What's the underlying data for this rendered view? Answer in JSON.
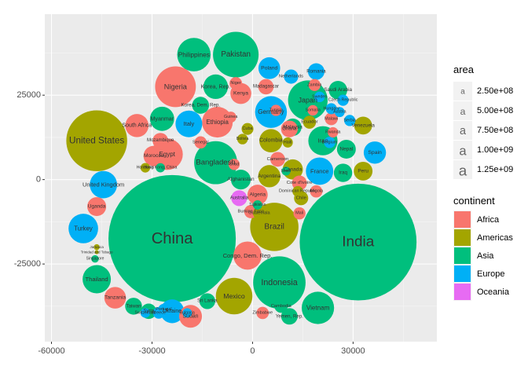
{
  "chart_data": {
    "type": "scatter",
    "title": "",
    "xlabel": "",
    "ylabel": "",
    "xlim": [
      -62000,
      55000
    ],
    "ylim": [
      -48000,
      49000
    ],
    "xticks": [
      -60000,
      -30000,
      0,
      30000
    ],
    "xtick_labels": [
      "-60000",
      "-30000",
      "0",
      "30000"
    ],
    "yticks": [
      -25000,
      0,
      25000
    ],
    "ytick_labels": [
      "-25000",
      "0",
      "25000"
    ],
    "grid": true,
    "legend_position": "right",
    "continent_legend": {
      "title": "continent",
      "entries": [
        {
          "name": "Africa",
          "color": "#F8766D"
        },
        {
          "name": "Americas",
          "color": "#A3A500"
        },
        {
          "name": "Asia",
          "color": "#00BF7D"
        },
        {
          "name": "Europe",
          "color": "#00B0F6"
        },
        {
          "name": "Oceania",
          "color": "#E76BF3"
        }
      ]
    },
    "area_legend": {
      "title": "area",
      "entries": [
        {
          "label": "2.50e+08",
          "value": 250000000
        },
        {
          "label": "5.00e+08",
          "value": 500000000
        },
        {
          "label": "7.50e+08",
          "value": 750000000
        },
        {
          "label": "1.00e+09",
          "value": 1000000000
        },
        {
          "label": "1.25e+09",
          "value": 1250000000
        }
      ]
    },
    "points": [
      {
        "label": "China",
        "continent": "Asia",
        "x": -24000,
        "y": -17500,
        "area": 1318683096
      },
      {
        "label": "India",
        "continent": "Asia",
        "x": 31500,
        "y": -18500,
        "area": 1110396331
      },
      {
        "label": "United States",
        "continent": "Americas",
        "x": -46500,
        "y": 11500,
        "area": 301139947
      },
      {
        "label": "Indonesia",
        "continent": "Asia",
        "x": 8000,
        "y": -30500,
        "area": 223547000
      },
      {
        "label": "Brazil",
        "continent": "Americas",
        "x": 6500,
        "y": -14000,
        "area": 190010647
      },
      {
        "label": "Pakistan",
        "continent": "Asia",
        "x": -5000,
        "y": 37000,
        "area": 169270617
      },
      {
        "label": "Bangladesh",
        "continent": "Asia",
        "x": -11000,
        "y": 5000,
        "area": 150448339
      },
      {
        "label": "Nigeria",
        "continent": "Africa",
        "x": -23000,
        "y": 27500,
        "area": 135031164
      },
      {
        "label": "Japan",
        "continent": "Asia",
        "x": 16500,
        "y": 23500,
        "area": 127467972
      },
      {
        "label": "Mexico",
        "continent": "Americas",
        "x": -5500,
        "y": -34500,
        "area": 108700891
      },
      {
        "label": "Philippines",
        "continent": "Asia",
        "x": -17500,
        "y": 37000,
        "area": 91077287
      },
      {
        "label": "Vietnam",
        "continent": "Asia",
        "x": 19500,
        "y": -38000,
        "area": 85262356
      },
      {
        "label": "Germany",
        "continent": "Europe",
        "x": 5500,
        "y": 20000,
        "area": 82400996
      },
      {
        "label": "Egypt",
        "continent": "Africa",
        "x": -25500,
        "y": 7500,
        "area": 80264543
      },
      {
        "label": "Ethiopia",
        "continent": "Africa",
        "x": -10500,
        "y": 17000,
        "area": 76511887
      },
      {
        "label": "Turkey",
        "continent": "Europe",
        "x": -50500,
        "y": -14500,
        "area": 71158647
      },
      {
        "label": "Iran",
        "continent": "Asia",
        "x": 21000,
        "y": 11500,
        "area": 69453570
      },
      {
        "label": "Thailand",
        "continent": "Asia",
        "x": -46500,
        "y": -29500,
        "area": 65068149
      },
      {
        "label": "Congo, Dem. Rep.",
        "continent": "Africa",
        "x": -1500,
        "y": -22500,
        "area": 64606759
      },
      {
        "label": "France",
        "continent": "Europe",
        "x": 20000,
        "y": 2500,
        "area": 61083916
      },
      {
        "label": "United Kingdom",
        "continent": "Europe",
        "x": -44500,
        "y": -1500,
        "area": 60776238
      },
      {
        "label": "Italy",
        "continent": "Europe",
        "x": -19000,
        "y": 16500,
        "area": 58147733
      },
      {
        "label": "South Africa",
        "continent": "Africa",
        "x": -34500,
        "y": 16000,
        "area": 43997828
      },
      {
        "label": "Korea, Rep.",
        "continent": "Asia",
        "x": -11000,
        "y": 27500,
        "area": 49044790
      },
      {
        "label": "Myanmar",
        "continent": "Asia",
        "x": -27000,
        "y": 18000,
        "area": 47761980
      },
      {
        "label": "Colombia",
        "continent": "Americas",
        "x": 5500,
        "y": 11500,
        "area": 44227550
      },
      {
        "label": "Spain",
        "continent": "Europe",
        "x": 36500,
        "y": 8000,
        "area": 40448191
      },
      {
        "label": "Ukraine",
        "continent": "Europe",
        "x": -24000,
        "y": -39000,
        "area": 46000000
      },
      {
        "label": "Tanzania",
        "continent": "Africa",
        "x": -41000,
        "y": -35000,
        "area": 38139640
      },
      {
        "label": "Sudan",
        "continent": "Africa",
        "x": -18500,
        "y": -40500,
        "area": 42292929
      },
      {
        "label": "Kenya",
        "continent": "Africa",
        "x": -3500,
        "y": 25500,
        "area": 35610177
      },
      {
        "label": "Argentina",
        "continent": "Americas",
        "x": 5000,
        "y": 1000,
        "area": 40301927
      },
      {
        "label": "Poland",
        "continent": "Europe",
        "x": 5000,
        "y": 33000,
        "area": 38518241
      },
      {
        "label": "Canada",
        "continent": "Americas",
        "x": 12000,
        "y": 3000,
        "area": 33390141
      },
      {
        "label": "Uganda",
        "continent": "Africa",
        "x": -46500,
        "y": -8000,
        "area": 29170398
      },
      {
        "label": "Morocco",
        "continent": "Africa",
        "x": -29500,
        "y": 7000,
        "area": 33757175
      },
      {
        "label": "Iraq",
        "continent": "Asia",
        "x": 27000,
        "y": 2000,
        "area": 27499638
      },
      {
        "label": "Peru",
        "continent": "Americas",
        "x": 33000,
        "y": 2500,
        "area": 28674757
      },
      {
        "label": "Venezuela",
        "continent": "Americas",
        "x": 33000,
        "y": 16000,
        "area": 26084662
      },
      {
        "label": "Nepal",
        "continent": "Asia",
        "x": 28000,
        "y": 9000,
        "area": 28901790
      },
      {
        "label": "Malaysia",
        "continent": "Asia",
        "x": 12000,
        "y": 15500,
        "area": 24821286
      },
      {
        "label": "Saudi Arabia",
        "continent": "Asia",
        "x": 25500,
        "y": 26500,
        "area": 27601038
      },
      {
        "label": "Romania",
        "continent": "Europe",
        "x": 19000,
        "y": 32000,
        "area": 22276056
      },
      {
        "label": "Afghanistan",
        "continent": "Asia",
        "x": -3500,
        "y": 0,
        "area": 31889923
      },
      {
        "label": "Ghana",
        "continent": "Africa",
        "x": 11000,
        "y": 15000,
        "area": 22873338
      },
      {
        "label": "Korea, Dem. Rep.",
        "continent": "Asia",
        "x": -15500,
        "y": 22000,
        "area": 23301725
      },
      {
        "label": "Australia",
        "continent": "Oceania",
        "x": -4000,
        "y": -5500,
        "area": 20434176
      },
      {
        "label": "Sri Lanka",
        "continent": "Asia",
        "x": -13500,
        "y": -36000,
        "area": 20378239
      },
      {
        "label": "Taiwan",
        "continent": "Asia",
        "x": -35500,
        "y": -37500,
        "area": 23174294
      },
      {
        "label": "Mozambique",
        "continent": "Africa",
        "x": -27500,
        "y": 11500,
        "area": 19951656
      },
      {
        "label": "Algeria",
        "continent": "Africa",
        "x": 1500,
        "y": -4500,
        "area": 33333216
      },
      {
        "label": "Yemen, Rep.",
        "continent": "Asia",
        "x": 11000,
        "y": -40500,
        "area": 22211743
      },
      {
        "label": "Syria",
        "continent": "Asia",
        "x": -31000,
        "y": -39000,
        "area": 19314747
      },
      {
        "label": "Zimbabwe",
        "continent": "Africa",
        "x": 3000,
        "y": -39500,
        "area": 12311143
      },
      {
        "label": "Cameroon",
        "continent": "Africa",
        "x": 7500,
        "y": 6000,
        "area": 17696293
      },
      {
        "label": "Chile",
        "continent": "Americas",
        "x": 14500,
        "y": -5500,
        "area": 16284741
      },
      {
        "label": "Netherlands",
        "continent": "Europe",
        "x": 11500,
        "y": 30500,
        "area": 16570613
      },
      {
        "label": "Burkina Faso",
        "continent": "Africa",
        "x": -500,
        "y": -9500,
        "area": 14326203
      },
      {
        "label": "Cote d'Ivoire",
        "continent": "Africa",
        "x": 14000,
        "y": -1000,
        "area": 18013409
      },
      {
        "label": "Madagascar",
        "continent": "Africa",
        "x": 4000,
        "y": 27500,
        "area": 19167654
      },
      {
        "label": "Angola",
        "continent": "Africa",
        "x": 19000,
        "y": -3500,
        "area": 12420476
      },
      {
        "label": "Guatemala",
        "continent": "Americas",
        "x": 2000,
        "y": -10000,
        "area": 12572928
      },
      {
        "label": "Ecuador",
        "continent": "Americas",
        "x": 17000,
        "y": 17000,
        "area": 13755680
      },
      {
        "label": "Cambodia",
        "continent": "Asia",
        "x": 8500,
        "y": -37500,
        "area": 14131858
      },
      {
        "label": "Mali",
        "continent": "Africa",
        "x": 14000,
        "y": -10000,
        "area": 12031795
      },
      {
        "label": "Malawi",
        "continent": "Africa",
        "x": 23500,
        "y": 18000,
        "area": 13327079
      },
      {
        "label": "Niger",
        "continent": "Africa",
        "x": -5000,
        "y": 28500,
        "area": 12894865
      },
      {
        "label": "Belgium",
        "continent": "Europe",
        "x": 23000,
        "y": 11000,
        "area": 10392226
      },
      {
        "label": "Cuba",
        "continent": "Americas",
        "x": -1500,
        "y": 15000,
        "area": 11416987
      },
      {
        "label": "Greece",
        "continent": "Europe",
        "x": -28000,
        "y": -39500,
        "area": 10706290
      },
      {
        "label": "Portugal",
        "continent": "Europe",
        "x": -26500,
        "y": -38500,
        "area": 10642836
      },
      {
        "label": "Czech Republic",
        "continent": "Europe",
        "x": 27000,
        "y": 23500,
        "area": 10228744
      },
      {
        "label": "Tunisia",
        "continent": "Africa",
        "x": 7000,
        "y": 20500,
        "area": 10276158
      },
      {
        "label": "Zambia",
        "continent": "Africa",
        "x": 18500,
        "y": 28000,
        "area": 11746035
      },
      {
        "label": "Senegal",
        "continent": "Africa",
        "x": -15500,
        "y": 11000,
        "area": 12267493
      },
      {
        "label": "Bolivia",
        "continent": "Americas",
        "x": -3000,
        "y": 12000,
        "area": 9119152
      },
      {
        "label": "Haiti",
        "continent": "Americas",
        "x": 10500,
        "y": 11000,
        "area": 8502814
      },
      {
        "label": "Hungary",
        "continent": "Europe",
        "x": 23500,
        "y": 21000,
        "area": 9956108
      },
      {
        "label": "Dominican Republic",
        "continent": "Americas",
        "x": 13500,
        "y": -3500,
        "area": 9319622
      },
      {
        "label": "Rwanda",
        "continent": "Africa",
        "x": 24000,
        "y": 14000,
        "area": 8860588
      },
      {
        "label": "Somalia",
        "continent": "Africa",
        "x": 18000,
        "y": 20500,
        "area": 9118773
      },
      {
        "label": "Chad",
        "continent": "Africa",
        "x": -5500,
        "y": 4500,
        "area": 10238807
      },
      {
        "label": "Guinea",
        "continent": "Africa",
        "x": -6500,
        "y": 18500,
        "area": 9947814
      },
      {
        "label": "Sweden",
        "continent": "Europe",
        "x": 20000,
        "y": 24500,
        "area": 9031088
      },
      {
        "label": "Tajikistan",
        "continent": "Asia",
        "x": 1500,
        "y": -7500,
        "area": 7082810
      },
      {
        "label": "Austria",
        "continent": "Europe",
        "x": 26000,
        "y": 20000,
        "area": 8199783
      },
      {
        "label": "Switzerland",
        "continent": "Europe",
        "x": -32000,
        "y": -39500,
        "area": 7554661
      },
      {
        "label": "Honduras",
        "continent": "Americas",
        "x": -32000,
        "y": 3500,
        "area": 7483763
      },
      {
        "label": "Israel",
        "continent": "Asia",
        "x": 10000,
        "y": 2500,
        "area": 6426679
      },
      {
        "label": "Serbia",
        "continent": "Europe",
        "x": 29000,
        "y": 17500,
        "area": 10150265
      },
      {
        "label": "Bulgaria",
        "continent": "Europe",
        "x": -19500,
        "y": -39500,
        "area": 7322858
      },
      {
        "label": "Hong Kong, China",
        "continent": "Asia",
        "x": -27500,
        "y": 3500,
        "area": 6980412
      },
      {
        "label": "Trinidad and Tobago",
        "continent": "Americas",
        "x": -46500,
        "y": -21500,
        "area": 1056608
      },
      {
        "label": "Jamaica",
        "continent": "Americas",
        "x": -46500,
        "y": -20000,
        "area": 2780132
      },
      {
        "label": "Singapore",
        "continent": "Asia",
        "x": -47000,
        "y": -23500,
        "area": 4553009
      }
    ]
  }
}
